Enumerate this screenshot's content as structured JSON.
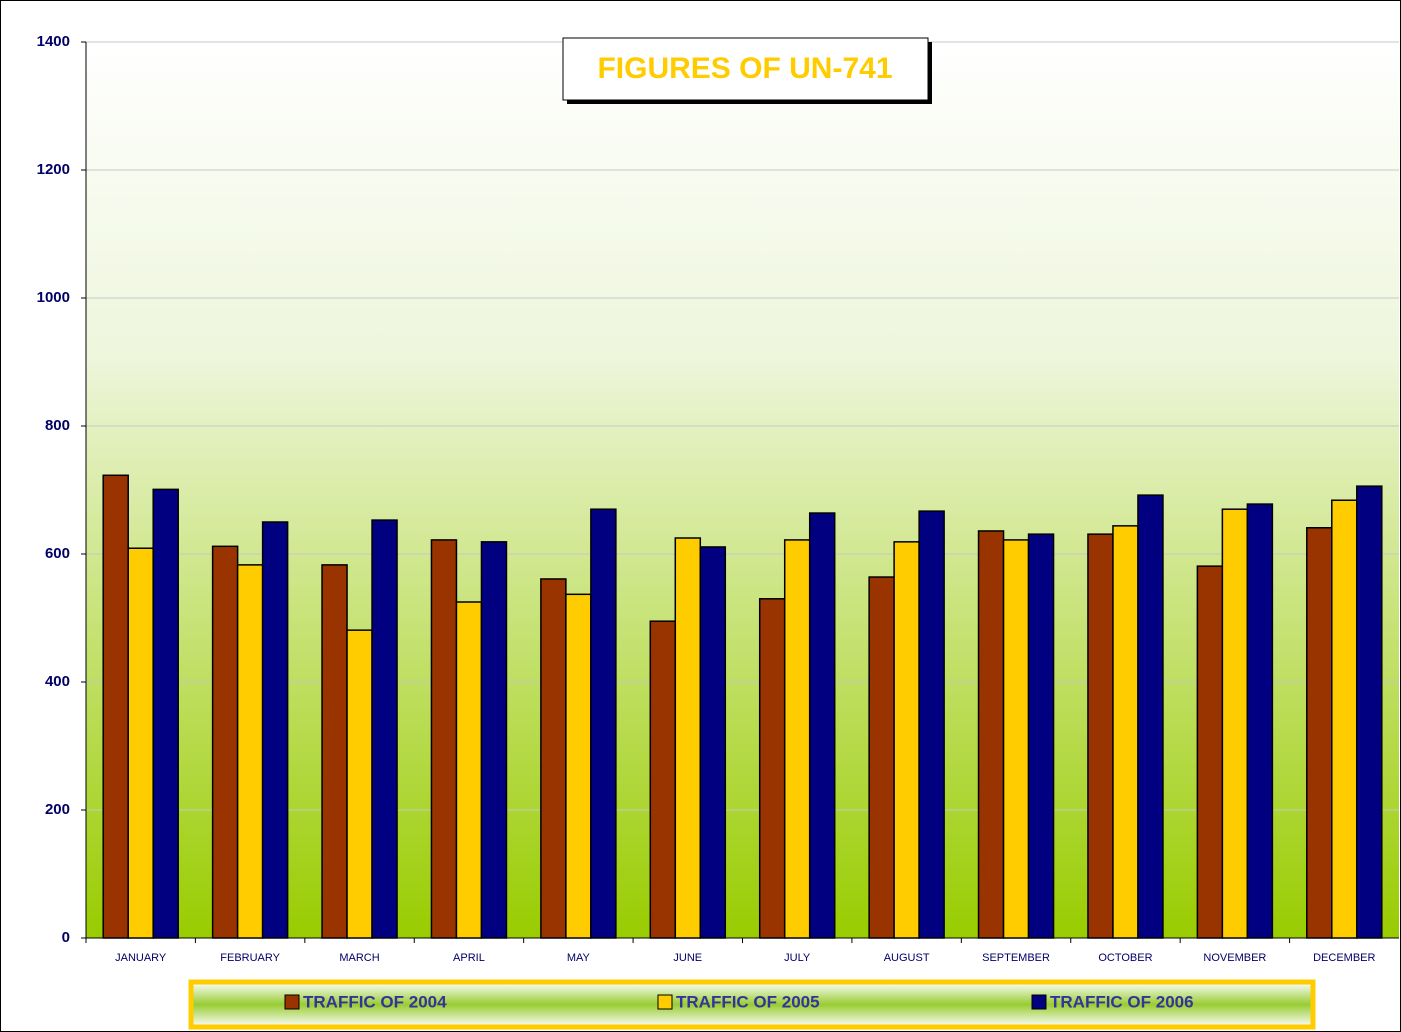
{
  "chart_data": {
    "type": "bar",
    "title": "FIGURES OF UN-741",
    "categories": [
      "JANUARY",
      "FEBRUARY",
      "MARCH",
      "APRIL",
      "MAY",
      "JUNE",
      "JULY",
      "AUGUST",
      "SEPTEMBER",
      "OCTOBER",
      "NOVEMBER",
      "DECEMBER"
    ],
    "series": [
      {
        "name": "TRAFFIC OF 2004",
        "color": "#993300",
        "values": [
          723,
          612,
          583,
          622,
          561,
          495,
          530,
          564,
          636,
          631,
          581,
          641
        ]
      },
      {
        "name": "TRAFFIC OF 2005",
        "color": "#ffcc00",
        "values": [
          609,
          583,
          481,
          525,
          537,
          625,
          622,
          619,
          622,
          644,
          670,
          684
        ]
      },
      {
        "name": "TRAFFIC OF 2006",
        "color": "#000080",
        "values": [
          701,
          650,
          653,
          619,
          670,
          611,
          664,
          667,
          631,
          692,
          678,
          706
        ]
      }
    ],
    "ylim": [
      0,
      1400
    ],
    "yticks": [
      0,
      200,
      400,
      600,
      800,
      1000,
      1200,
      1400
    ],
    "grid": true,
    "legend": "bottom"
  }
}
